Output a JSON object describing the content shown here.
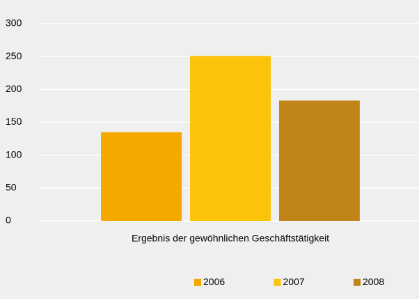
{
  "chart_data": {
    "type": "bar",
    "categories": [
      "Ergebnis der gewöhnlichen Geschäftstätigkeit"
    ],
    "series": [
      {
        "name": "2006",
        "color": "#f5a800",
        "values": [
          135
        ]
      },
      {
        "name": "2007",
        "color": "#fcc30b",
        "values": [
          251
        ]
      },
      {
        "name": "2008",
        "color": "#c08418",
        "values": [
          183
        ]
      }
    ],
    "ylim": [
      0,
      300
    ],
    "yticks": [
      0,
      50,
      100,
      150,
      200,
      250,
      300
    ],
    "grid": true,
    "legend": "bottom"
  }
}
